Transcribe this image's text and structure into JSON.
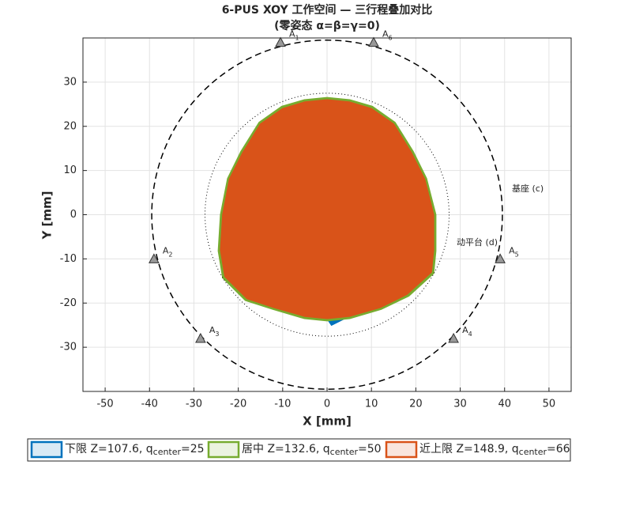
{
  "chart_data": {
    "type": "polygon",
    "title": "6-PUS XOY 工作空间 — 三行程叠加对比",
    "subtitle": "(零姿态 α=β=γ=0)",
    "xlabel": "X [mm]",
    "ylabel": "Y [mm]",
    "xlim": [
      -55,
      55
    ],
    "ylim": [
      -40,
      40
    ],
    "xticks": [
      -50,
      -40,
      -30,
      -20,
      -10,
      0,
      10,
      20,
      30,
      40,
      50
    ],
    "yticks": [
      -30,
      -20,
      -10,
      0,
      10,
      20,
      30
    ],
    "grid": true,
    "circles": [
      {
        "label": "基座 (c)",
        "r": 39.5,
        "style": "dashed"
      },
      {
        "label": "动平台 (d)",
        "r": 27.5,
        "style": "dotted"
      }
    ],
    "anchors": {
      "label": "A",
      "subs": [
        "1",
        "2",
        "3",
        "4",
        "5",
        "6"
      ],
      "x": [
        -10.5,
        -39,
        -28.5,
        28.5,
        39,
        10.5
      ],
      "y": [
        39,
        -10,
        -28,
        -28,
        -10,
        39
      ],
      "color": "#999999"
    },
    "series": [
      {
        "name": "下限 Z=107.6, q",
        "name_sub": "center",
        "name_tail": "=25",
        "color": "#0072BD",
        "x": [
          0,
          5,
          10,
          15,
          19.5,
          20,
          22,
          24,
          24,
          23.5,
          18,
          12,
          5,
          1,
          0,
          -5,
          -12,
          -18,
          -23,
          -24,
          -23.5,
          -22,
          -20,
          -19,
          -15,
          -10,
          -5
        ],
        "y": [
          26,
          25.5,
          24,
          20.5,
          14,
          11.5,
          8,
          0,
          -8,
          -13,
          -18,
          -21,
          -23,
          -25,
          -23.5,
          -23,
          -21,
          -19,
          -14,
          -8,
          0,
          8,
          13,
          14,
          20.5,
          24,
          25.5
        ]
      },
      {
        "name": "居中 Z=132.6, q",
        "name_sub": "center",
        "name_tail": "=50",
        "color": "#77AC30",
        "x": [
          0,
          5.1,
          10.2,
          15.3,
          19.4,
          22.4,
          24.5,
          24.5,
          24,
          18.4,
          12.2,
          5.1,
          0,
          -5.1,
          -12.2,
          -18.4,
          -23.5,
          -24.5,
          -24,
          -22.4,
          -19.4,
          -15.3,
          -10.2,
          -5.1
        ],
        "y": [
          26.5,
          26,
          24.5,
          20.9,
          14.3,
          8.2,
          0,
          -8.2,
          -13.3,
          -18.4,
          -21.4,
          -23.5,
          -24,
          -23.5,
          -21.4,
          -19.4,
          -14.3,
          -8.2,
          0,
          8.2,
          14.3,
          20.9,
          24.5,
          26
        ]
      },
      {
        "name": "近上限 Z=148.9, q",
        "name_sub": "center",
        "name_tail": "=66",
        "color": "#D95319",
        "x": [
          0,
          5,
          10,
          15,
          19,
          22,
          24,
          24,
          23.5,
          18,
          12,
          5,
          0,
          -5,
          -12,
          -18,
          -23,
          -24,
          -23.5,
          -22,
          -19,
          -15,
          -10,
          -5
        ],
        "y": [
          26,
          25.5,
          24,
          20.5,
          14,
          8,
          0,
          -8,
          -13,
          -18,
          -21,
          -23,
          -23.5,
          -23,
          -21,
          -19,
          -14,
          -8,
          0,
          8,
          14,
          20.5,
          24,
          25.5
        ]
      }
    ]
  }
}
